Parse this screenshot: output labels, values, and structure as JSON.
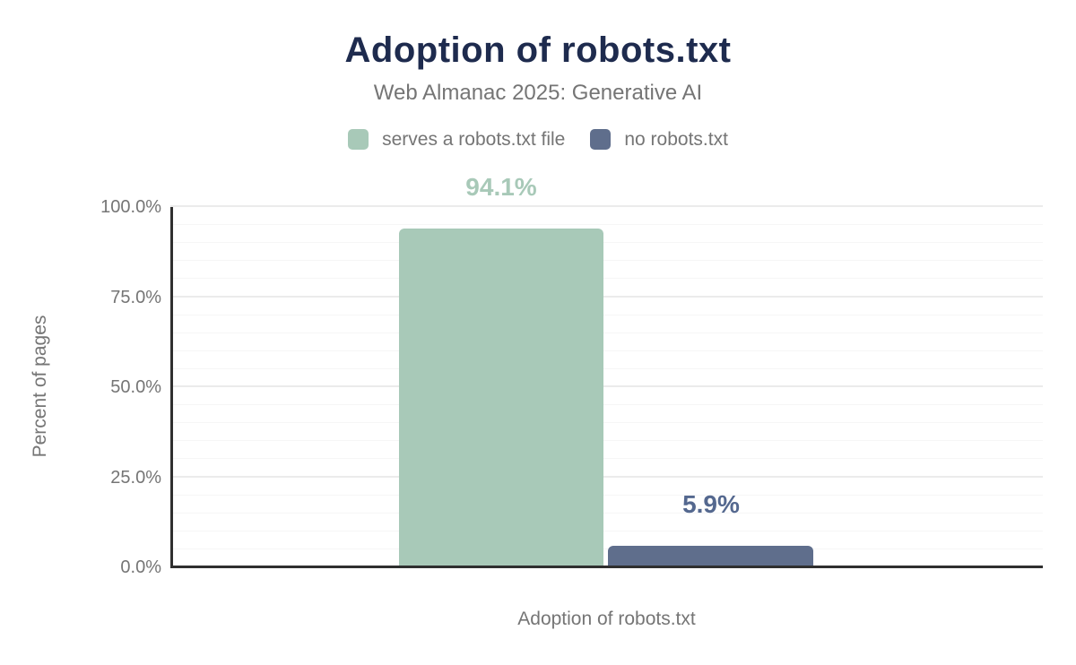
{
  "chart_data": {
    "type": "bar",
    "title": "Adoption of robots.txt",
    "subtitle": "Web Almanac 2025: Generative AI",
    "categories": [
      "Adoption of robots.txt"
    ],
    "series": [
      {
        "name": "serves a robots.txt file",
        "values": [
          94.1
        ],
        "label": "94.1%",
        "color": "#a8c9b8",
        "label_color": "#a8c9b8"
      },
      {
        "name": "no robots.txt",
        "values": [
          5.9
        ],
        "label": "5.9%",
        "color": "#5f6e8c",
        "label_color": "#54688f"
      }
    ],
    "xlabel": "Adoption of robots.txt",
    "ylabel": "Percent of pages",
    "ylim": [
      0,
      100
    ],
    "yticks": [
      0,
      25,
      50,
      75,
      100
    ],
    "ytick_labels": [
      "0.0%",
      "25.0%",
      "50.0%",
      "75.0%",
      "100.0%"
    ],
    "minor_grid_step": 5,
    "grid": true,
    "legend_position": "top"
  },
  "style": {
    "title_color": "#1e2b4e",
    "text_gray": "#757575",
    "axis_line_color": "#2f2f2f",
    "minor_grid_color": "#f6f6f6",
    "major_grid_color": "#ebebeb",
    "background": "#ffffff"
  }
}
